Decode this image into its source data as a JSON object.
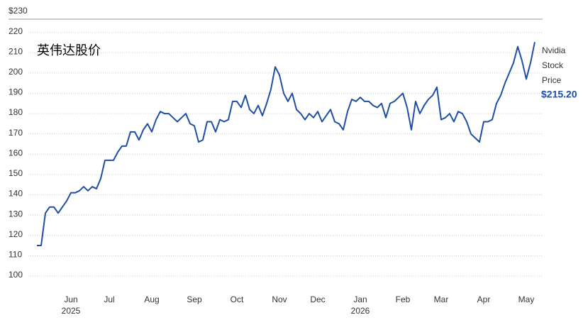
{
  "chart_data": {
    "type": "line",
    "title": "英伟达股价",
    "categories": [
      "",
      "",
      "",
      "",
      "",
      "",
      "",
      "",
      "Jun",
      "",
      "",
      "",
      "",
      "",
      "",
      "",
      "",
      "Jul",
      "",
      "",
      "",
      "",
      "",
      "",
      "",
      "",
      "",
      "Aug",
      "",
      "",
      "",
      "",
      "",
      "",
      "",
      "",
      "",
      "Sep",
      "",
      "",
      "",
      "",
      "",
      "",
      "",
      "",
      "",
      "Oct",
      "",
      "",
      "",
      "",
      "",
      "",
      "",
      "",
      "",
      "Nov",
      "",
      "",
      "",
      "",
      "",
      "",
      "",
      "",
      "Dec",
      "",
      "",
      "",
      "",
      "",
      "",
      "",
      "",
      "",
      "Jan",
      "",
      "",
      "",
      "",
      "",
      "",
      "",
      "",
      "",
      "Feb",
      "",
      "",
      "",
      "",
      "",
      "",
      "",
      "",
      "Mar",
      "",
      "",
      "",
      "",
      "",
      "",
      "",
      "",
      "",
      "Apr",
      "",
      "",
      "",
      "",
      "",
      "",
      "",
      "",
      "",
      "May",
      "",
      ""
    ],
    "x_years": [
      {
        "category": "Jun",
        "label": "2025"
      },
      {
        "category": "Jan",
        "label": "2026"
      }
    ],
    "series": [
      {
        "name": "Nvidia Stock Price",
        "color": "#1f4fa3",
        "values": [
          115,
          115,
          131,
          134,
          134,
          131,
          134,
          137,
          141,
          141,
          142,
          144,
          142,
          144,
          143,
          148,
          157,
          157,
          157,
          161,
          164,
          164,
          171,
          171,
          167,
          172,
          175,
          171,
          177,
          181,
          180,
          180,
          178,
          176,
          178,
          180,
          175,
          174,
          166,
          167,
          176,
          176,
          171,
          177,
          176,
          177,
          186,
          186,
          183,
          189,
          182,
          180,
          184,
          179,
          185,
          192,
          203,
          199,
          190,
          186,
          190,
          182,
          180,
          177,
          180,
          178,
          181,
          176,
          179,
          182,
          176,
          175,
          172,
          181,
          187,
          186,
          188,
          186,
          186,
          184,
          183,
          185,
          178,
          185,
          186,
          188,
          190,
          183,
          172,
          186,
          180,
          184,
          187,
          189,
          193,
          177,
          178,
          180,
          176,
          181,
          180,
          176,
          170,
          168,
          166,
          176,
          176,
          177,
          185,
          189,
          195,
          200,
          205,
          213,
          206,
          197,
          205,
          215.2
        ],
        "last_value_label": "$215.20"
      }
    ],
    "ylim": [
      94.4,
      230
    ],
    "yticks": [
      100,
      110,
      120,
      130,
      140,
      150,
      160,
      170,
      180,
      190,
      200,
      210,
      220,
      {
        "value": 230,
        "label": "$230"
      }
    ],
    "grid": true
  }
}
